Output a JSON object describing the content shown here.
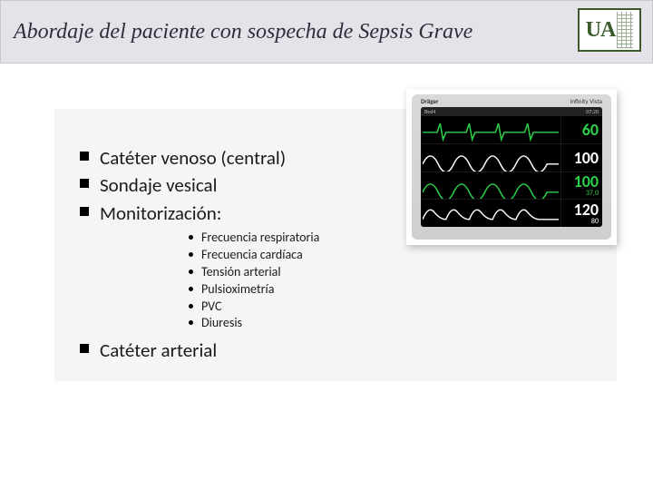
{
  "title": "Abordaje del paciente con sospecha de Sepsis Grave",
  "logo": {
    "letters": "UA"
  },
  "mainItems": [
    "Catéter venoso (central)",
    "Sondaje vesical",
    "Monitorización:",
    "Catéter arterial"
  ],
  "subItems": [
    "Frecuencia respiratoria",
    "Frecuencia cardíaca",
    "Tensión arterial",
    "Pulsioximetría",
    "PVC",
    "Diuresis"
  ],
  "monitor": {
    "brand": "Dräger",
    "model": "Infinity Vista",
    "topbar": {
      "bed": "Bed4",
      "time": "07:20"
    },
    "rows": [
      {
        "color": "#2bd24a",
        "big": "60",
        "small": "",
        "wave": "ecg"
      },
      {
        "color": "#ffffff",
        "big": "100",
        "small": "",
        "wave": "pleth"
      },
      {
        "color": "#2bd24a",
        "big": "100",
        "small": "37.0",
        "wave": "pleth"
      },
      {
        "color": "#ffffff",
        "big": "120",
        "small": "80",
        "wave": "abp"
      }
    ]
  },
  "colors": {
    "titleBg": "#e5e3e9",
    "panelBg": "#f5f5f5",
    "bullet": "#000000"
  }
}
